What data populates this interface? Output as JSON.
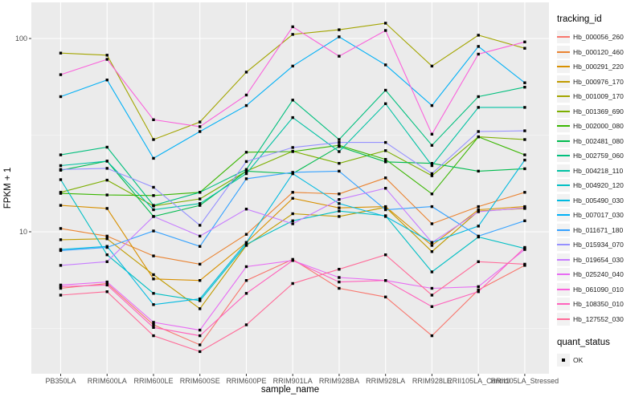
{
  "chart_data": {
    "type": "line",
    "title": "",
    "xlabel": "sample_name",
    "ylabel": "FPKM + 1",
    "y_scale": "log10",
    "y_ticks": [
      100,
      10
    ],
    "y_minor": [
      31.62,
      3.162
    ],
    "ylim": [
      1.85,
      155
    ],
    "grid": "on",
    "panel_bg": "#EBEBEB",
    "grid_color": "#FFFFFF",
    "point_shape": "filled-black-square",
    "legend_position": "right",
    "categories": [
      "PB350LA",
      "RRIM600LA",
      "RRIM600LE",
      "RRIM600SE",
      "RRIM600PE",
      "RRIM901LA",
      "RRIM928BA",
      "RRIM928LA",
      "RRIM928LE",
      "RRII105LA_Control",
      "RRII105LA_Stressed"
    ],
    "series": [
      {
        "name": "Hb_000056_260",
        "color": "#F8766D",
        "values": [
          5.1,
          5.4,
          3.3,
          2.6,
          5.6,
          7.2,
          5.1,
          4.6,
          2.9,
          5.0,
          6.7
        ]
      },
      {
        "name": "Hb_000120_460",
        "color": "#EA8331",
        "values": [
          10.4,
          9.5,
          7.5,
          6.8,
          9.7,
          16.0,
          15.7,
          19.0,
          11.0,
          13.5,
          16.0
        ]
      },
      {
        "name": "Hb_000291_220",
        "color": "#D89000",
        "values": [
          13.7,
          13.2,
          5.7,
          5.6,
          8.8,
          14.9,
          13.3,
          13.5,
          8.5,
          13.0,
          13.5
        ]
      },
      {
        "name": "Hb_000976_170",
        "color": "#C09B00",
        "values": [
          9.1,
          9.2,
          6.0,
          4.0,
          8.5,
          12.4,
          12.0,
          13.4,
          7.9,
          12.8,
          13.2
        ]
      },
      {
        "name": "Hb_001009_170",
        "color": "#A3A500",
        "values": [
          84,
          82,
          30,
          37,
          67,
          105,
          111,
          120,
          72,
          104,
          89
        ]
      },
      {
        "name": "Hb_001369_690",
        "color": "#7CAE00",
        "values": [
          16.0,
          18.5,
          13.6,
          14.8,
          20.6,
          26.1,
          22.6,
          26.3,
          19.5,
          31.0,
          30.0
        ]
      },
      {
        "name": "Hb_002000_080",
        "color": "#39B600",
        "values": [
          15.8,
          15.5,
          15.4,
          16.0,
          25.8,
          26.0,
          28.0,
          23.7,
          15.7,
          31.0,
          25.0
        ]
      },
      {
        "name": "Hb_002481_080",
        "color": "#00BB4E",
        "values": [
          20.8,
          23.2,
          12.0,
          13.7,
          20.6,
          20.0,
          27.6,
          23.0,
          22.6,
          20.6,
          21.2
        ]
      },
      {
        "name": "Hb_002759_060",
        "color": "#00BF7D",
        "values": [
          25.0,
          27.4,
          13.7,
          16.0,
          21.0,
          48.0,
          30.0,
          54.0,
          28.0,
          50.0,
          56.0
        ]
      },
      {
        "name": "Hb_004218_110",
        "color": "#00C1A3",
        "values": [
          22.0,
          23.2,
          13.0,
          14.0,
          20.0,
          39.0,
          26.0,
          46.0,
          22.0,
          44.0,
          44.0
        ]
      },
      {
        "name": "Hb_004920_120",
        "color": "#00BFC4",
        "values": [
          18.6,
          7.6,
          4.8,
          4.4,
          8.6,
          11.4,
          12.8,
          12.1,
          6.2,
          9.4,
          8.2
        ]
      },
      {
        "name": "Hb_005490_030",
        "color": "#00BAE0",
        "values": [
          8.1,
          8.4,
          4.2,
          4.5,
          8.8,
          20.0,
          14.0,
          12.0,
          8.8,
          10.7,
          23.5
        ]
      },
      {
        "name": "Hb_007017_030",
        "color": "#00B0F6",
        "values": [
          50,
          61,
          24,
          33,
          45,
          72,
          102,
          73,
          45,
          91,
          59
        ]
      },
      {
        "name": "Hb_011671_180",
        "color": "#35A2FF",
        "values": [
          8.0,
          8.3,
          10.1,
          8.4,
          18.8,
          20.3,
          20.6,
          13.0,
          13.5,
          9.5,
          11.4
        ]
      },
      {
        "name": "Hb_015934_070",
        "color": "#9590FF",
        "values": [
          21.0,
          21.3,
          17.0,
          10.8,
          23.1,
          27.3,
          29.0,
          29.0,
          20.0,
          33.0,
          33.3
        ]
      },
      {
        "name": "Hb_019654_030",
        "color": "#C77CFF",
        "values": [
          6.7,
          7.0,
          12.0,
          9.5,
          13.1,
          11.0,
          14.7,
          16.8,
          8.8,
          12.7,
          13.3
        ]
      },
      {
        "name": "Hb_025240_040",
        "color": "#E76BF3",
        "values": [
          5.3,
          5.5,
          3.4,
          3.1,
          6.6,
          7.1,
          5.8,
          5.6,
          5.1,
          5.2,
          8.1
        ]
      },
      {
        "name": "Hb_061090_010",
        "color": "#FA62DB",
        "values": [
          65,
          78,
          38,
          35,
          51,
          115,
          81,
          110,
          32,
          83,
          96
        ]
      },
      {
        "name": "Hb_108350_010",
        "color": "#FF62BC",
        "values": [
          5.2,
          5.3,
          3.2,
          2.9,
          4.8,
          7.1,
          5.5,
          5.6,
          4.1,
          4.9,
          8.3
        ]
      },
      {
        "name": "Hb_127552_030",
        "color": "#FF6A98",
        "values": [
          4.7,
          4.9,
          2.9,
          2.4,
          3.3,
          5.4,
          6.4,
          7.6,
          4.7,
          7.0,
          6.8
        ]
      }
    ],
    "legend": {
      "tracking_title": "tracking_id",
      "quant_title": "quant_status",
      "quant_items": [
        {
          "label": "OK"
        }
      ]
    }
  }
}
